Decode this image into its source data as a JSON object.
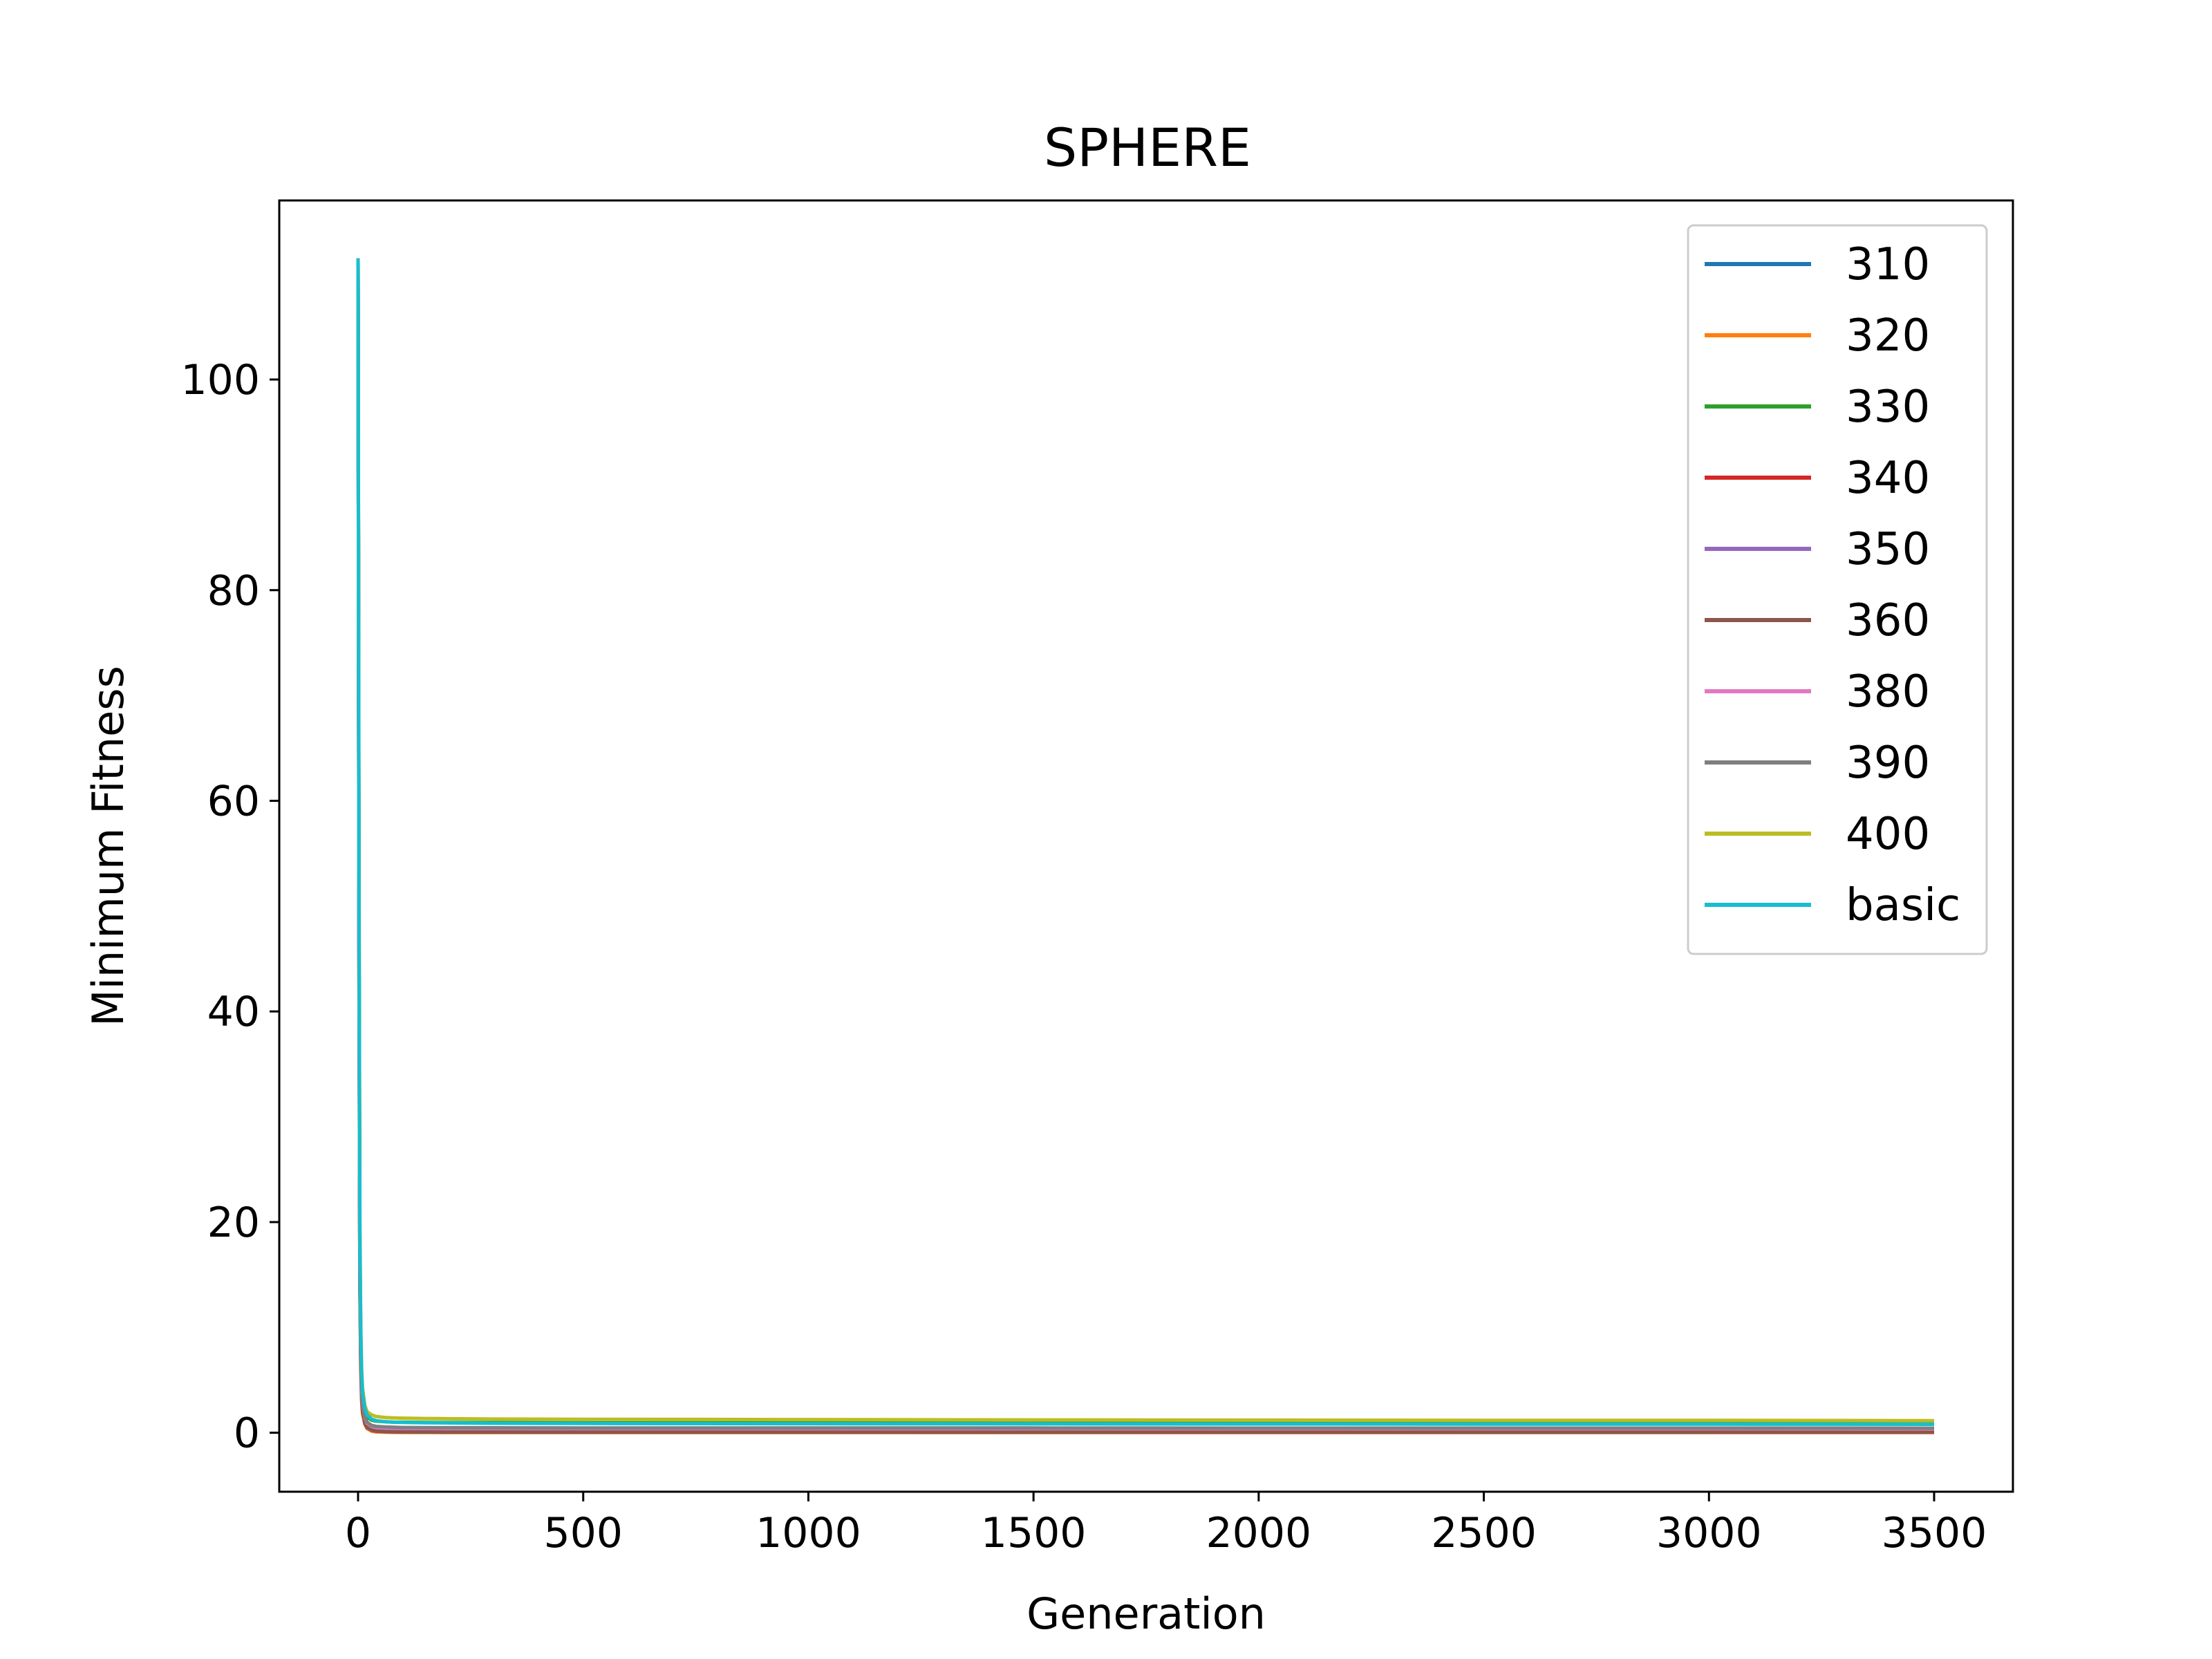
{
  "chart_data": {
    "type": "line",
    "title": "SPHERE",
    "xlabel": "Generation",
    "ylabel": "Minimum Fitness",
    "xlim": [
      -175,
      3675
    ],
    "ylim": [
      -5.6,
      117
    ],
    "x_ticks": [
      0,
      500,
      1000,
      1500,
      2000,
      2500,
      3000,
      3500
    ],
    "x_tick_labels": [
      "0",
      "500",
      "1000",
      "1500",
      "2000",
      "2500",
      "3000",
      "3500"
    ],
    "y_ticks": [
      0,
      20,
      40,
      60,
      80,
      100
    ],
    "y_tick_labels": [
      "0",
      "20",
      "40",
      "60",
      "80",
      "100"
    ],
    "grid": false,
    "legend_position": "upper-right",
    "x": [
      0,
      2,
      4,
      6,
      8,
      10,
      15,
      20,
      30,
      40,
      60,
      80,
      100,
      150,
      200,
      300,
      500,
      1000,
      1500,
      2000,
      2500,
      3000,
      3500
    ],
    "series": [
      {
        "name": "310",
        "color": "#1f77b4",
        "values": [
          111.5,
          50,
          16,
          8,
          4.5,
          3,
          1.6,
          1.0,
          0.6,
          0.5,
          0.45,
          0.42,
          0.4,
          0.38,
          0.37,
          0.36,
          0.35,
          0.34,
          0.33,
          0.32,
          0.32,
          0.31,
          0.31
        ]
      },
      {
        "name": "320",
        "color": "#ff7f0e",
        "values": [
          111.5,
          45,
          14,
          6,
          3,
          1.8,
          0.8,
          0.4,
          0.15,
          0.08,
          0.05,
          0.04,
          0.03,
          0.03,
          0.02,
          0.02,
          0.02,
          0.02,
          0.02,
          0.02,
          0.02,
          0.02,
          0.02
        ]
      },
      {
        "name": "330",
        "color": "#2ca02c",
        "values": [
          111.5,
          52,
          18,
          9,
          5,
          3.4,
          2.0,
          1.5,
          1.2,
          1.1,
          1.05,
          1.0,
          1.0,
          0.98,
          0.97,
          0.96,
          0.95,
          0.94,
          0.93,
          0.92,
          0.92,
          0.91,
          0.91
        ]
      },
      {
        "name": "340",
        "color": "#d62728",
        "values": [
          111.5,
          47,
          15,
          7,
          3.5,
          2.2,
          1.0,
          0.6,
          0.3,
          0.2,
          0.15,
          0.12,
          0.1,
          0.09,
          0.09,
          0.08,
          0.08,
          0.08,
          0.07,
          0.07,
          0.07,
          0.07,
          0.07
        ]
      },
      {
        "name": "350",
        "color": "#9467bd",
        "values": [
          111.5,
          48,
          15,
          7.5,
          4,
          2.5,
          1.2,
          0.8,
          0.5,
          0.4,
          0.35,
          0.32,
          0.3,
          0.29,
          0.28,
          0.27,
          0.26,
          0.25,
          0.25,
          0.24,
          0.24,
          0.24,
          0.24
        ]
      },
      {
        "name": "360",
        "color": "#8c564b",
        "values": [
          111.5,
          46,
          14.5,
          6.5,
          3.2,
          2.0,
          0.9,
          0.5,
          0.25,
          0.15,
          0.1,
          0.08,
          0.07,
          0.06,
          0.06,
          0.06,
          0.05,
          0.05,
          0.05,
          0.05,
          0.05,
          0.05,
          0.05
        ]
      },
      {
        "name": "380",
        "color": "#e377c2",
        "values": [
          111.5,
          49,
          16,
          8,
          4.2,
          2.8,
          1.4,
          0.9,
          0.6,
          0.5,
          0.45,
          0.43,
          0.42,
          0.41,
          0.4,
          0.4,
          0.39,
          0.38,
          0.38,
          0.37,
          0.37,
          0.37,
          0.36
        ]
      },
      {
        "name": "390",
        "color": "#7f7f7f",
        "values": [
          111.5,
          50,
          16.5,
          8.2,
          4.4,
          3.0,
          1.5,
          1.0,
          0.7,
          0.6,
          0.55,
          0.52,
          0.5,
          0.49,
          0.48,
          0.47,
          0.46,
          0.45,
          0.45,
          0.44,
          0.44,
          0.44,
          0.43
        ]
      },
      {
        "name": "400",
        "color": "#bcbd22",
        "values": [
          111.5,
          55,
          20,
          10,
          6,
          4.2,
          2.6,
          2.0,
          1.7,
          1.55,
          1.45,
          1.4,
          1.38,
          1.35,
          1.33,
          1.3,
          1.28,
          1.25,
          1.22,
          1.2,
          1.18,
          1.17,
          1.15
        ]
      },
      {
        "name": "basic",
        "color": "#17becf",
        "values": [
          111.5,
          53,
          19,
          9.5,
          5.5,
          3.8,
          2.3,
          1.7,
          1.3,
          1.15,
          1.05,
          1.0,
          0.98,
          0.95,
          0.93,
          0.9,
          0.88,
          0.86,
          0.84,
          0.83,
          0.82,
          0.81,
          0.8
        ]
      }
    ]
  }
}
